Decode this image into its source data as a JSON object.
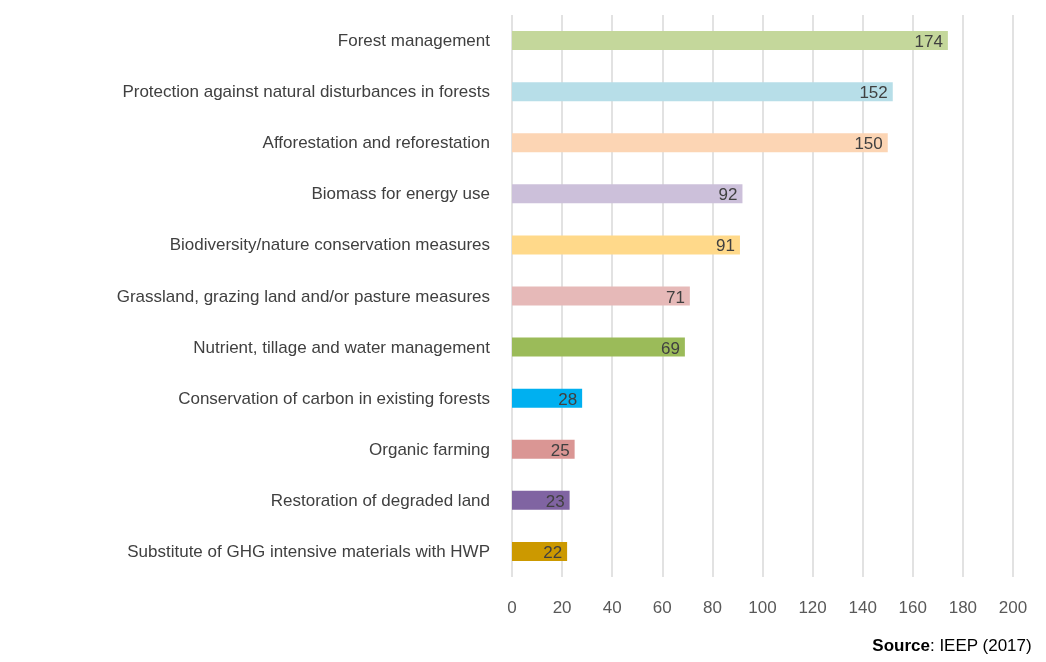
{
  "chart_data": {
    "type": "bar",
    "orientation": "horizontal",
    "categories": [
      "Forest management",
      "Protection against natural disturbances in forests",
      "Afforestation and reforestation",
      "Biomass for energy use",
      "Biodiversity/nature conservation measures",
      "Grassland, grazing land and/or pasture measures",
      "Nutrient, tillage and water management",
      "Conservation of carbon in existing forests",
      "Organic farming",
      "Restoration of degraded land",
      "Substitute of GHG intensive materials with HWP"
    ],
    "values": [
      174,
      152,
      150,
      92,
      91,
      71,
      69,
      28,
      25,
      23,
      22
    ],
    "colors": [
      "#c4d79b",
      "#b7dee8",
      "#fcd5b4",
      "#ccc0da",
      "#ffd98a",
      "#e6b9b8",
      "#9bbb59",
      "#00b0f0",
      "#da9694",
      "#8064a2",
      "#cc9900"
    ],
    "xlim": [
      0,
      200
    ],
    "xticks": [
      0,
      20,
      40,
      60,
      80,
      100,
      120,
      140,
      160,
      180,
      200
    ],
    "grid": "x",
    "data_labels": true,
    "annotations": [
      "Source: IEEP (2017)"
    ]
  }
}
